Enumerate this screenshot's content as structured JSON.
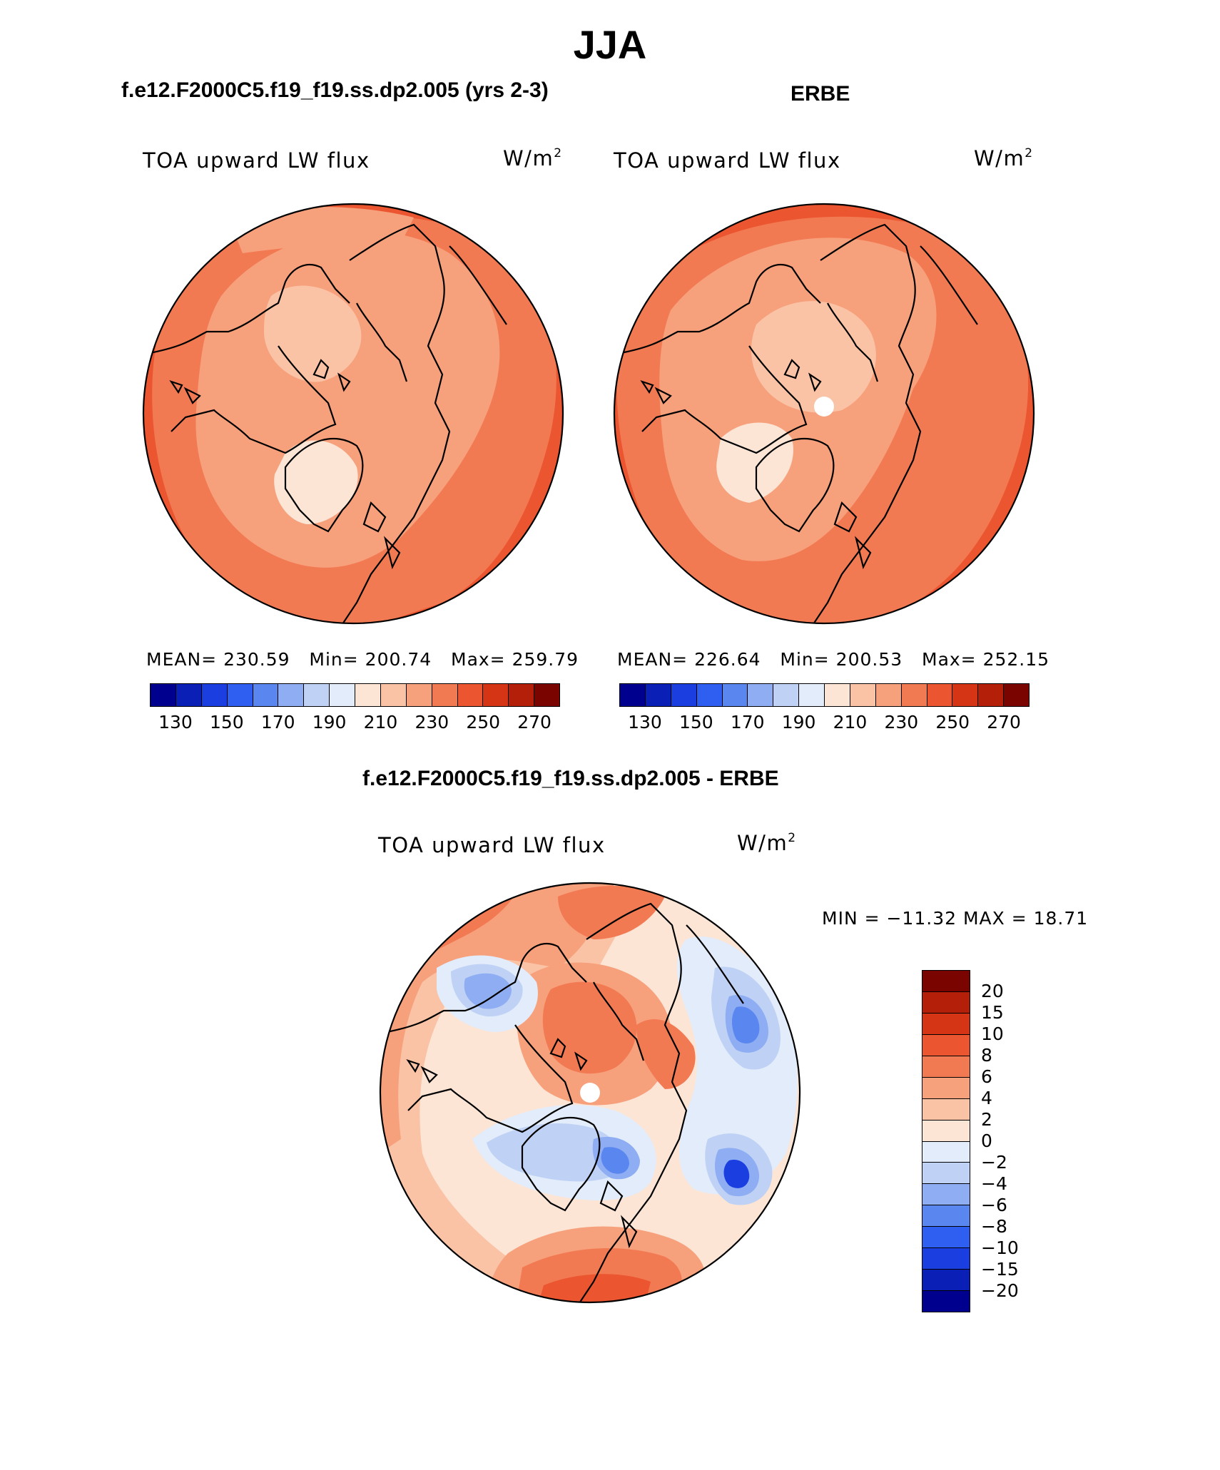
{
  "figure": {
    "title": "JJA"
  },
  "panels": {
    "model": {
      "title": "f.e12.F2000C5.f19_f19.ss.dp2.005 (yrs 2-3)",
      "variable": "TOA upward LW flux",
      "units": "W/m",
      "units_exp": "2",
      "stats": {
        "mean_label": "MEAN=",
        "mean": "230.59",
        "min_label": "Min=",
        "min": "200.74",
        "max_label": "Max=",
        "max": "259.79"
      }
    },
    "obs": {
      "title": "ERBE",
      "variable": "TOA upward LW flux",
      "units": "W/m",
      "units_exp": "2",
      "stats": {
        "mean_label": "MEAN=",
        "mean": "226.64",
        "min_label": "Min=",
        "min": "200.53",
        "max_label": "Max=",
        "max": "252.15"
      }
    },
    "diff": {
      "title": "f.e12.F2000C5.f19_f19.ss.dp2.005 - ERBE",
      "variable": "TOA upward LW flux",
      "units": "W/m",
      "units_exp": "2",
      "minmax_label": "MIN = −11.32 MAX =  18.71"
    }
  },
  "colorbars": {
    "absolute": {
      "colors": [
        "#00008f",
        "#0a1fb5",
        "#1a3ee0",
        "#2f5ff0",
        "#5a86f0",
        "#8eadf2",
        "#bfd2f5",
        "#e2ecfa",
        "#fde5d6",
        "#fbc3a6",
        "#f7a07c",
        "#f27a53",
        "#eb5530",
        "#d63515",
        "#b41f0a",
        "#7a0500"
      ],
      "ticks": [
        "130",
        "150",
        "170",
        "190",
        "210",
        "230",
        "250",
        "270"
      ]
    },
    "difference": {
      "colors": [
        "#7a0500",
        "#b41f0a",
        "#d63515",
        "#eb5530",
        "#f27a53",
        "#f7a07c",
        "#fbc3a6",
        "#fde5d6",
        "#e2ecfa",
        "#bfd2f5",
        "#8eadf2",
        "#5a86f0",
        "#2f5ff0",
        "#1a3ee0",
        "#0a1fb5",
        "#00008f"
      ],
      "ticks": [
        "20",
        "15",
        "10",
        "8",
        "6",
        "4",
        "2",
        "0",
        "−2",
        "−4",
        "−6",
        "−8",
        "−10",
        "−15",
        "−20"
      ]
    }
  },
  "chart_data": [
    {
      "type": "heatmap",
      "projection": "north polar stereographic",
      "title": "TOA upward LW flux",
      "dataset": "f.e12.F2000C5.f19_f19.ss.dp2.005 (yrs 2-3)",
      "units": "W/m2",
      "levels": [
        130,
        140,
        150,
        160,
        170,
        180,
        190,
        200,
        210,
        220,
        230,
        240,
        250,
        260,
        270
      ],
      "mean": 230.59,
      "min": 200.74,
      "max": 259.79
    },
    {
      "type": "heatmap",
      "projection": "north polar stereographic",
      "title": "TOA upward LW flux",
      "dataset": "ERBE",
      "units": "W/m2",
      "levels": [
        130,
        140,
        150,
        160,
        170,
        180,
        190,
        200,
        210,
        220,
        230,
        240,
        250,
        260,
        270
      ],
      "mean": 226.64,
      "min": 200.53,
      "max": 252.15
    },
    {
      "type": "heatmap",
      "projection": "north polar stereographic",
      "title": "TOA upward LW flux",
      "dataset": "f.e12.F2000C5.f19_f19.ss.dp2.005 - ERBE",
      "units": "W/m2",
      "levels": [
        -20,
        -15,
        -10,
        -8,
        -6,
        -4,
        -2,
        0,
        2,
        4,
        6,
        8,
        10,
        15,
        20
      ],
      "min": -11.32,
      "max": 18.71
    }
  ]
}
